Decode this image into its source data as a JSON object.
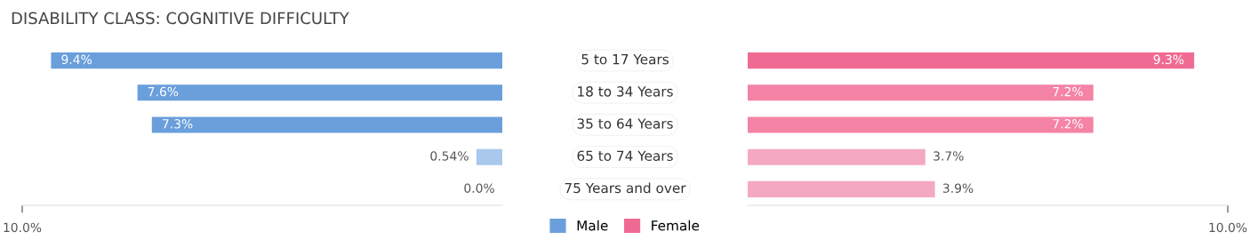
{
  "chart_data": [
    {
      "type": "bar",
      "orientation": "horizontal",
      "title": "DISABILITY CLASS: COGNITIVE DIFFICULTY",
      "categories": [
        "5 to 17 Years",
        "18 to 34 Years",
        "35 to 64 Years",
        "65 to 74 Years",
        "75 Years and over"
      ],
      "series": [
        {
          "name": "Male",
          "color": "#6a9fdc",
          "colors": [
            "#6a9fdc",
            "#6a9fdc",
            "#6a9fdc",
            "#a9c8ec",
            "#a9c8ec"
          ],
          "values": [
            9.4,
            7.6,
            7.3,
            0.54,
            0.0
          ],
          "value_labels": [
            "9.4%",
            "7.6%",
            "7.3%",
            "0.54%",
            "0.0%"
          ]
        }
      ],
      "xlim": [
        10,
        0
      ],
      "xticks": [
        {
          "value": 10,
          "label": "10.0%"
        }
      ],
      "legend": "bottom"
    },
    {
      "type": "bar",
      "orientation": "horizontal",
      "categories": [
        null,
        null,
        null,
        null,
        null
      ],
      "series": [
        {
          "name": "Female",
          "color": "#f06b93",
          "colors": [
            "#f06b93",
            "#f483a6",
            "#f483a6",
            "#f5a8c2",
            "#f5a8c2"
          ],
          "values": [
            9.3,
            7.2,
            7.2,
            3.7,
            3.9
          ],
          "value_labels": [
            "9.3%",
            "7.2%",
            "7.2%",
            "3.7%",
            "3.9%"
          ]
        }
      ],
      "xlim": [
        0,
        10
      ],
      "xticks": [
        {
          "value": 10,
          "label": "10.0%"
        }
      ],
      "legend": "bottom"
    }
  ]
}
